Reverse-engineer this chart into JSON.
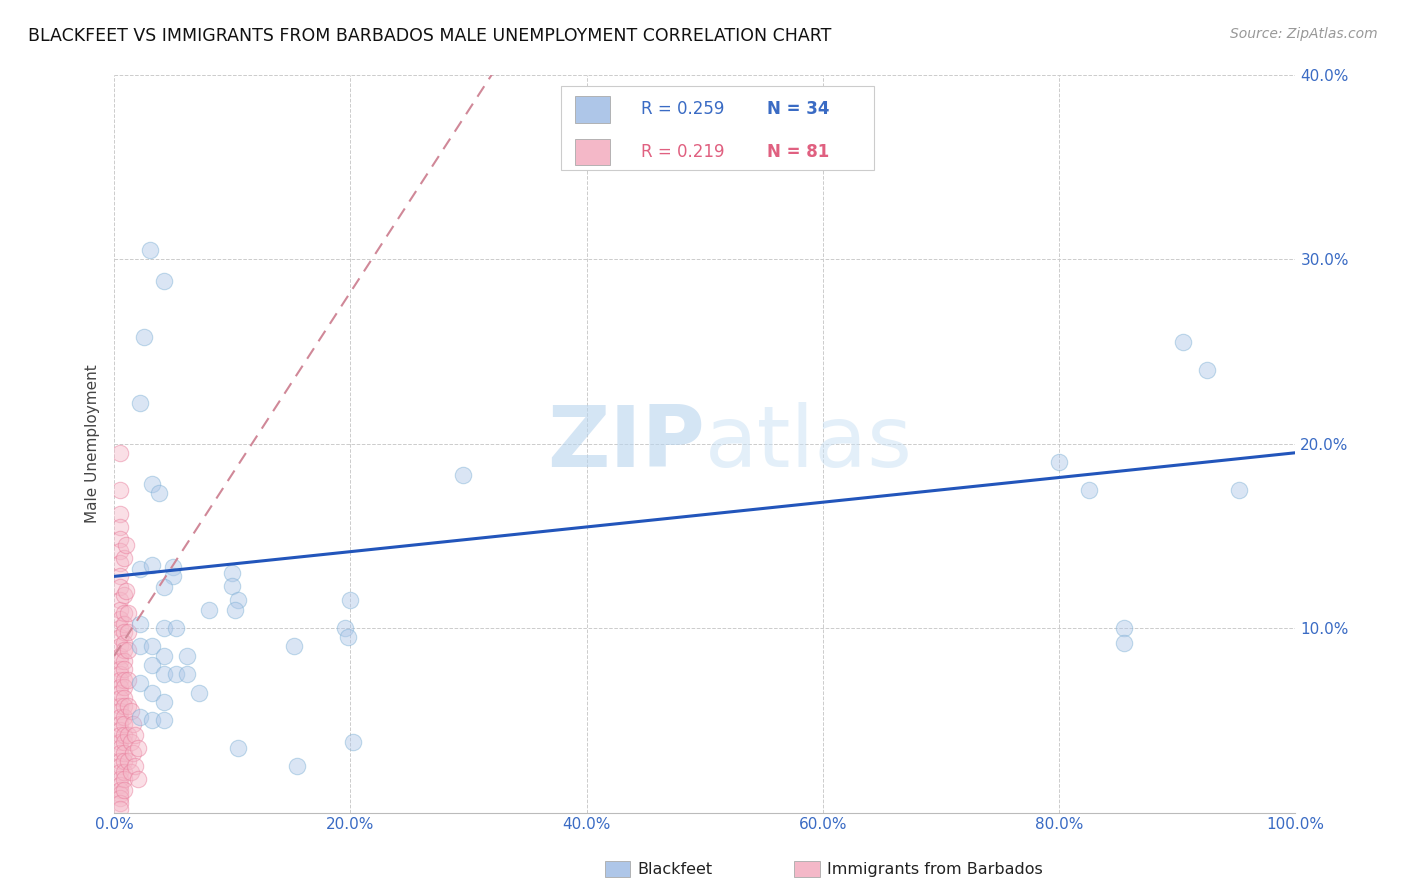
{
  "title": "BLACKFEET VS IMMIGRANTS FROM BARBADOS MALE UNEMPLOYMENT CORRELATION CHART",
  "source": "Source: ZipAtlas.com",
  "ylabel": "Male Unemployment",
  "xlim": [
    0,
    1.0
  ],
  "ylim": [
    0,
    0.4
  ],
  "xticks": [
    0.0,
    0.2,
    0.4,
    0.6,
    0.8,
    1.0
  ],
  "yticks": [
    0.0,
    0.1,
    0.2,
    0.3,
    0.4
  ],
  "xtick_labels": [
    "0.0%",
    "20.0%",
    "40.0%",
    "60.0%",
    "80.0%",
    "100.0%"
  ],
  "ytick_labels": [
    "",
    "10.0%",
    "20.0%",
    "30.0%",
    "40.0%"
  ],
  "legend_entries": [
    {
      "label": "Blackfeet",
      "color": "#aec6e8",
      "edge_color": "#7bafd4",
      "R": "0.259",
      "N": "34"
    },
    {
      "label": "Immigrants from Barbados",
      "color": "#f4b8c8",
      "edge_color": "#e87898",
      "R": "0.219",
      "N": "81"
    }
  ],
  "watermark": "ZIPatlas",
  "blackfeet_scatter": [
    [
      0.022,
      0.222
    ],
    [
      0.03,
      0.305
    ],
    [
      0.042,
      0.288
    ],
    [
      0.025,
      0.258
    ],
    [
      0.032,
      0.178
    ],
    [
      0.038,
      0.173
    ],
    [
      0.022,
      0.132
    ],
    [
      0.032,
      0.134
    ],
    [
      0.05,
      0.133
    ],
    [
      0.05,
      0.128
    ],
    [
      0.042,
      0.122
    ],
    [
      0.022,
      0.102
    ],
    [
      0.042,
      0.1
    ],
    [
      0.052,
      0.1
    ],
    [
      0.022,
      0.09
    ],
    [
      0.032,
      0.09
    ],
    [
      0.042,
      0.085
    ],
    [
      0.062,
      0.085
    ],
    [
      0.032,
      0.08
    ],
    [
      0.042,
      0.075
    ],
    [
      0.052,
      0.075
    ],
    [
      0.022,
      0.07
    ],
    [
      0.032,
      0.065
    ],
    [
      0.042,
      0.06
    ],
    [
      0.08,
      0.11
    ],
    [
      0.1,
      0.13
    ],
    [
      0.1,
      0.123
    ],
    [
      0.105,
      0.115
    ],
    [
      0.102,
      0.11
    ],
    [
      0.2,
      0.115
    ],
    [
      0.195,
      0.1
    ],
    [
      0.198,
      0.095
    ],
    [
      0.152,
      0.09
    ],
    [
      0.295,
      0.183
    ],
    [
      0.8,
      0.19
    ],
    [
      0.825,
      0.175
    ],
    [
      0.855,
      0.1
    ],
    [
      0.855,
      0.092
    ],
    [
      0.905,
      0.255
    ],
    [
      0.925,
      0.24
    ],
    [
      0.952,
      0.175
    ],
    [
      0.105,
      0.035
    ],
    [
      0.155,
      0.025
    ],
    [
      0.202,
      0.038
    ],
    [
      0.022,
      0.052
    ],
    [
      0.032,
      0.05
    ],
    [
      0.042,
      0.05
    ],
    [
      0.062,
      0.075
    ],
    [
      0.072,
      0.065
    ]
  ],
  "barbados_scatter": [
    [
      0.005,
      0.195
    ],
    [
      0.005,
      0.175
    ],
    [
      0.005,
      0.162
    ],
    [
      0.005,
      0.155
    ],
    [
      0.005,
      0.148
    ],
    [
      0.005,
      0.142
    ],
    [
      0.005,
      0.135
    ],
    [
      0.005,
      0.128
    ],
    [
      0.005,
      0.122
    ],
    [
      0.005,
      0.115
    ],
    [
      0.005,
      0.11
    ],
    [
      0.005,
      0.105
    ],
    [
      0.005,
      0.1
    ],
    [
      0.005,
      0.095
    ],
    [
      0.005,
      0.09
    ],
    [
      0.005,
      0.085
    ],
    [
      0.005,
      0.082
    ],
    [
      0.005,
      0.078
    ],
    [
      0.005,
      0.075
    ],
    [
      0.005,
      0.072
    ],
    [
      0.005,
      0.068
    ],
    [
      0.005,
      0.065
    ],
    [
      0.005,
      0.062
    ],
    [
      0.005,
      0.058
    ],
    [
      0.005,
      0.055
    ],
    [
      0.005,
      0.052
    ],
    [
      0.005,
      0.048
    ],
    [
      0.005,
      0.045
    ],
    [
      0.005,
      0.042
    ],
    [
      0.005,
      0.038
    ],
    [
      0.005,
      0.035
    ],
    [
      0.005,
      0.032
    ],
    [
      0.005,
      0.028
    ],
    [
      0.005,
      0.025
    ],
    [
      0.005,
      0.022
    ],
    [
      0.005,
      0.018
    ],
    [
      0.005,
      0.015
    ],
    [
      0.005,
      0.012
    ],
    [
      0.005,
      0.01
    ],
    [
      0.005,
      0.008
    ],
    [
      0.005,
      0.005
    ],
    [
      0.005,
      0.002
    ],
    [
      0.008,
      0.138
    ],
    [
      0.008,
      0.118
    ],
    [
      0.008,
      0.108
    ],
    [
      0.008,
      0.102
    ],
    [
      0.008,
      0.098
    ],
    [
      0.008,
      0.092
    ],
    [
      0.008,
      0.088
    ],
    [
      0.008,
      0.082
    ],
    [
      0.008,
      0.078
    ],
    [
      0.008,
      0.072
    ],
    [
      0.008,
      0.068
    ],
    [
      0.008,
      0.062
    ],
    [
      0.008,
      0.058
    ],
    [
      0.008,
      0.052
    ],
    [
      0.008,
      0.048
    ],
    [
      0.008,
      0.042
    ],
    [
      0.008,
      0.038
    ],
    [
      0.008,
      0.032
    ],
    [
      0.008,
      0.028
    ],
    [
      0.008,
      0.022
    ],
    [
      0.008,
      0.018
    ],
    [
      0.008,
      0.012
    ],
    [
      0.01,
      0.145
    ],
    [
      0.01,
      0.12
    ],
    [
      0.012,
      0.108
    ],
    [
      0.012,
      0.098
    ],
    [
      0.012,
      0.088
    ],
    [
      0.012,
      0.072
    ],
    [
      0.012,
      0.058
    ],
    [
      0.012,
      0.042
    ],
    [
      0.012,
      0.028
    ],
    [
      0.014,
      0.055
    ],
    [
      0.014,
      0.038
    ],
    [
      0.014,
      0.022
    ],
    [
      0.016,
      0.048
    ],
    [
      0.016,
      0.032
    ],
    [
      0.018,
      0.042
    ],
    [
      0.018,
      0.025
    ],
    [
      0.02,
      0.035
    ],
    [
      0.02,
      0.018
    ]
  ],
  "blackfeet_trend": {
    "x_start": 0.0,
    "x_end": 1.0,
    "y_start": 0.128,
    "y_end": 0.195
  },
  "blackfeet_trend_color": "#2255bb",
  "barbados_trend": {
    "x_start": 0.0,
    "x_end": 0.34,
    "y_start": 0.085,
    "y_end": 0.42
  },
  "barbados_trend_color": "#d08898",
  "background_color": "#ffffff",
  "grid_color": "#cccccc",
  "scatter_size": 100,
  "scatter_alpha": 0.45
}
